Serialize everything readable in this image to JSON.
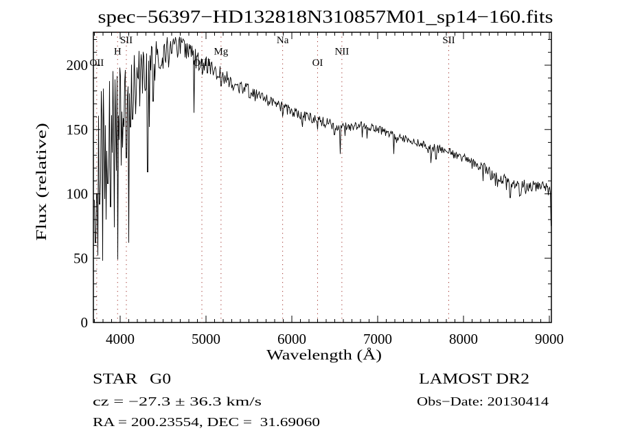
{
  "chart_data": {
    "type": "line",
    "title": "spec−56397−HD132818N310857M01_sp14−160.fits",
    "xlabel": "Wavelength (Å)",
    "ylabel": "Flux (relative)",
    "xlim": [
      3688,
      9024
    ],
    "ylim": [
      0,
      225.6
    ],
    "x_major_ticks": [
      4000,
      5000,
      6000,
      7000,
      8000,
      9000
    ],
    "x_minor_step": 100,
    "y_major_ticks": [
      0,
      50,
      100,
      150,
      200
    ],
    "y_minor_step": 10,
    "grid": false,
    "line_color": "#000000",
    "marker_color": "#9e2f28",
    "spectral_lines": [
      {
        "label": "OII",
        "wavelength": 3727,
        "row": "low"
      },
      {
        "label": "H",
        "wavelength": 3970,
        "row": "mid"
      },
      {
        "label": "SII",
        "wavelength": 4072,
        "row": "high"
      },
      {
        "label": "OIII",
        "wavelength": 4952,
        "row": "low"
      },
      {
        "label": "Mg",
        "wavelength": 5175,
        "row": "mid"
      },
      {
        "label": "Na",
        "wavelength": 5893,
        "row": "high"
      },
      {
        "label": "OI",
        "wavelength": 6300,
        "row": "low"
      },
      {
        "label": "NII",
        "wavelength": 6583,
        "row": "mid"
      },
      {
        "label": "SII",
        "wavelength": 7828,
        "row": "high"
      }
    ],
    "continuum": [
      [
        3690,
        140
      ],
      [
        3700,
        160
      ],
      [
        3750,
        150
      ],
      [
        3800,
        165
      ],
      [
        3850,
        162
      ],
      [
        3900,
        172
      ],
      [
        3950,
        178
      ],
      [
        4000,
        178
      ],
      [
        4050,
        182
      ],
      [
        4100,
        186
      ],
      [
        4150,
        190
      ],
      [
        4200,
        196
      ],
      [
        4250,
        198
      ],
      [
        4300,
        197
      ],
      [
        4350,
        204
      ],
      [
        4400,
        208
      ],
      [
        4450,
        211
      ],
      [
        4500,
        212
      ],
      [
        4550,
        214
      ],
      [
        4600,
        214
      ],
      [
        4650,
        216
      ],
      [
        4700,
        215
      ],
      [
        4750,
        212
      ],
      [
        4800,
        210
      ],
      [
        4861,
        206
      ],
      [
        4900,
        204
      ],
      [
        5000,
        200
      ],
      [
        5100,
        196
      ],
      [
        5200,
        191
      ],
      [
        5400,
        183
      ],
      [
        5600,
        177
      ],
      [
        5800,
        170
      ],
      [
        6000,
        164
      ],
      [
        6300,
        157
      ],
      [
        6583,
        152
      ],
      [
        6840,
        153
      ],
      [
        7000,
        150
      ],
      [
        7300,
        143
      ],
      [
        7600,
        137
      ],
      [
        7800,
        133
      ],
      [
        8000,
        128
      ],
      [
        8200,
        122
      ],
      [
        8400,
        113
      ],
      [
        8600,
        108
      ],
      [
        8800,
        106
      ],
      [
        8950,
        108
      ],
      [
        9020,
        104
      ]
    ],
    "noise_amplitude": [
      [
        3690,
        42
      ],
      [
        3750,
        40
      ],
      [
        3800,
        34
      ],
      [
        3850,
        32
      ],
      [
        3900,
        28
      ],
      [
        3950,
        26
      ],
      [
        4000,
        24
      ],
      [
        4100,
        20
      ],
      [
        4200,
        16
      ],
      [
        4300,
        13
      ],
      [
        4400,
        10
      ],
      [
        4500,
        9
      ],
      [
        4700,
        8
      ],
      [
        5000,
        7
      ],
      [
        5300,
        6
      ],
      [
        5700,
        4.5
      ],
      [
        6200,
        4
      ],
      [
        6800,
        3.5
      ],
      [
        7400,
        3
      ],
      [
        8000,
        3.5
      ],
      [
        8500,
        4.5
      ],
      [
        9000,
        4
      ]
    ],
    "absorption_lines": [
      [
        3697,
        95
      ],
      [
        3712,
        62
      ],
      [
        3727,
        100
      ],
      [
        3742,
        52
      ],
      [
        3760,
        92
      ],
      [
        3772,
        112
      ],
      [
        3798,
        48
      ],
      [
        3820,
        96
      ],
      [
        3835,
        80
      ],
      [
        3856,
        108
      ],
      [
        3870,
        122
      ],
      [
        3889,
        90
      ],
      [
        3910,
        132
      ],
      [
        3934,
        74
      ],
      [
        3955,
        118
      ],
      [
        3970,
        49
      ],
      [
        3990,
        142
      ],
      [
        4010,
        122
      ],
      [
        4026,
        136
      ],
      [
        4045,
        152
      ],
      [
        4072,
        128
      ],
      [
        4102,
        62
      ],
      [
        4120,
        152
      ],
      [
        4144,
        158
      ],
      [
        4180,
        162
      ],
      [
        4227,
        168
      ],
      [
        4260,
        178
      ],
      [
        4290,
        180
      ],
      [
        4320,
        117
      ],
      [
        4340,
        152
      ],
      [
        4383,
        172
      ],
      [
        4405,
        188
      ],
      [
        4455,
        198
      ],
      [
        4481,
        200
      ],
      [
        4530,
        202
      ],
      [
        4668,
        206
      ],
      [
        4861,
        163
      ],
      [
        4920,
        197
      ],
      [
        5015,
        194
      ],
      [
        5050,
        193
      ],
      [
        5175,
        184
      ],
      [
        5270,
        183
      ],
      [
        5430,
        178
      ],
      [
        5890,
        160
      ],
      [
        6122,
        152
      ],
      [
        6300,
        150
      ],
      [
        6495,
        146
      ],
      [
        6563,
        131
      ],
      [
        6620,
        145
      ],
      [
        7190,
        131
      ],
      [
        7620,
        124
      ],
      [
        7680,
        127
      ],
      [
        8230,
        110
      ],
      [
        8320,
        111
      ],
      [
        8500,
        103
      ],
      [
        8545,
        97
      ],
      [
        8665,
        99
      ],
      [
        8755,
        102
      ],
      [
        9018,
        75
      ]
    ],
    "noise_seed": 12345
  },
  "annotations": {
    "class_label": "STAR",
    "subclass": "G0",
    "survey": "LAMOST DR2",
    "cz": "cz = −27.3 ± 36.3 km/s",
    "obs_date": "Obs−Date: 20130414",
    "radec": "RA = 200.23554, DEC =  31.69060"
  }
}
